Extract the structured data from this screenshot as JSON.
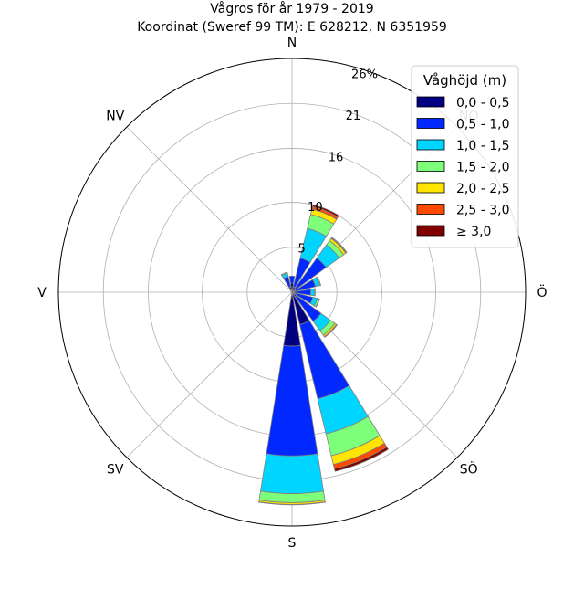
{
  "title_line1": "Vågros för år 1979 - 2019",
  "title_line2": "Koordinat (Sweref 99 TM): E 628212, N 6351959",
  "chart_data": {
    "type": "windrose",
    "title": "Vågros för år 1979 - 2019",
    "subtitle": "Koordinat (Sweref 99 TM): E 628212, N 6351959",
    "directions": [
      "N",
      "NNE",
      "NE",
      "ENE",
      "E",
      "ESE",
      "SE",
      "SSE",
      "S",
      "SSW",
      "SW",
      "WSW",
      "W",
      "WNW",
      "NW",
      "NNW"
    ],
    "compass_labels": [
      {
        "angle": 0,
        "text": "N"
      },
      {
        "angle": 45,
        "text": "NO"
      },
      {
        "angle": 90,
        "text": "Ö"
      },
      {
        "angle": 135,
        "text": "SÖ"
      },
      {
        "angle": 180,
        "text": "S"
      },
      {
        "angle": 225,
        "text": "SV"
      },
      {
        "angle": 270,
        "text": "V"
      },
      {
        "angle": 315,
        "text": "NV"
      }
    ],
    "radial_ticks": [
      5,
      10,
      16,
      21,
      26
    ],
    "radial_tick_labels": [
      "5",
      "10",
      "16",
      "21",
      "26%"
    ],
    "rlim": [
      0,
      26
    ],
    "legend_title": "Våghöjd (m)",
    "legend_placement": "top-right",
    "series": [
      {
        "name": "0,0 - 0,5",
        "color": "#000080",
        "values": [
          1.0,
          0.6,
          0.5,
          0.4,
          0.3,
          0.4,
          0.6,
          3.7,
          6.0,
          0,
          0,
          0,
          0,
          0,
          0,
          0.6
        ]
      },
      {
        "name": "0,5 - 1,0",
        "color": "#0028ff",
        "values": [
          0.8,
          3.3,
          4.2,
          2.3,
          1.8,
          2.0,
          3.4,
          8.5,
          12.2,
          0,
          0,
          0,
          0,
          0,
          0,
          1.2
        ]
      },
      {
        "name": "1,0 - 1,5",
        "color": "#00d5ff",
        "values": [
          0,
          3.4,
          1.8,
          0.5,
          0.4,
          0.5,
          1.3,
          4.0,
          4.2,
          0,
          0,
          0,
          0,
          0,
          0,
          0.4
        ]
      },
      {
        "name": "1,5 - 2,0",
        "color": "#7dff7a",
        "values": [
          0,
          1.6,
          0.6,
          0.1,
          0.1,
          0.2,
          0.6,
          2.5,
          1.0,
          0,
          0,
          0,
          0,
          0,
          0,
          0.1
        ]
      },
      {
        "name": "2,0 - 2,5",
        "color": "#ffe500",
        "values": [
          0,
          0.6,
          0.3,
          0,
          0,
          0.05,
          0.2,
          1.0,
          0.2,
          0,
          0,
          0,
          0,
          0,
          0,
          0
        ]
      },
      {
        "name": "2,5 - 3,0",
        "color": "#ff4a00",
        "values": [
          0,
          0.3,
          0.1,
          0,
          0,
          0,
          0.1,
          0.5,
          0.05,
          0,
          0,
          0,
          0,
          0,
          0,
          0
        ]
      },
      {
        "name": "≥ 3,0",
        "color": "#800000",
        "values": [
          0,
          0.2,
          0.05,
          0,
          0,
          0,
          0,
          0.3,
          0,
          0,
          0,
          0,
          0,
          0,
          0,
          0
        ]
      }
    ]
  }
}
